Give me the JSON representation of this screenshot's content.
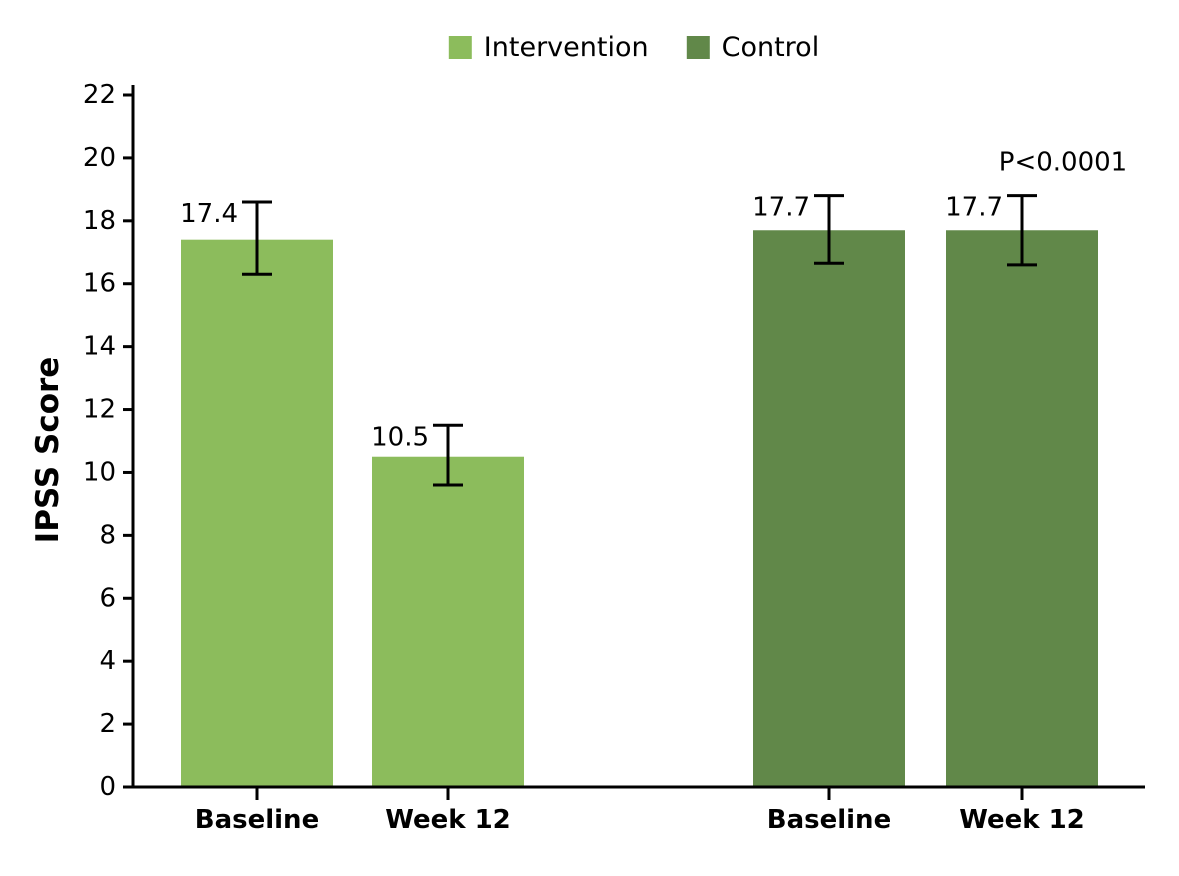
{
  "chart_data": {
    "type": "bar",
    "title": "",
    "xlabel": "",
    "ylabel": "IPSS Score",
    "ylim": [
      0,
      22
    ],
    "yticks": [
      0,
      2,
      4,
      6,
      8,
      10,
      12,
      14,
      16,
      18,
      20,
      22
    ],
    "grid": false,
    "categories": [
      "Baseline",
      "Week 12"
    ],
    "series": [
      {
        "name": "Intervention",
        "color": "#8CBC5C",
        "values": [
          17.4,
          10.5
        ],
        "value_labels": [
          "17.4",
          "10.5"
        ],
        "error_high": [
          18.6,
          11.5
        ],
        "error_low": [
          16.3,
          9.6
        ]
      },
      {
        "name": "Control",
        "color": "#618849",
        "values": [
          17.7,
          17.7
        ],
        "value_labels": [
          "17.7",
          "17.7"
        ],
        "error_high": [
          18.8,
          18.8
        ],
        "error_low": [
          16.65,
          16.6
        ]
      }
    ],
    "annotations": [
      {
        "text": "P<0.0001",
        "series_index": 1,
        "category_index": 1
      }
    ],
    "legend": {
      "position": "top-center",
      "entries": [
        {
          "label": "Intervention",
          "color": "#8CBC5C"
        },
        {
          "label": "Control",
          "color": "#618849"
        }
      ]
    }
  }
}
